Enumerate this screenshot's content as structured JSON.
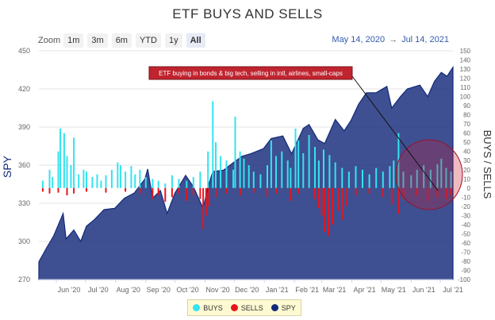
{
  "title": "ETF BUYS AND SELLS",
  "zoom": {
    "label": "Zoom",
    "buttons": [
      "1m",
      "3m",
      "6m",
      "YTD",
      "1y",
      "All"
    ],
    "active": "All"
  },
  "date_range": {
    "from": "May 14, 2020",
    "separator": "→",
    "to": "Jul 14, 2021"
  },
  "legend": {
    "buys": "BUYS",
    "sells": "SELLS",
    "spy": "SPY",
    "buys_color": "#33e3ef",
    "sells_color": "#e8141c",
    "spy_color": "#132a7a"
  },
  "chart_data": {
    "type": "area",
    "title": "ETF BUYS AND SELLS",
    "left_axis": {
      "label": "SPY",
      "range": [
        270,
        450
      ],
      "ticks": [
        270,
        300,
        330,
        360,
        390,
        420,
        450
      ]
    },
    "right_axis": {
      "label": "BUYS / SELLS",
      "range": [
        -100,
        150
      ],
      "ticks": [
        -100,
        -90,
        -80,
        -70,
        -60,
        -50,
        -40,
        -30,
        -20,
        -10,
        0,
        10,
        20,
        30,
        40,
        50,
        60,
        70,
        80,
        90,
        100,
        110,
        120,
        130,
        140,
        150
      ]
    },
    "x_ticks": [
      "Jun '20",
      "Jul '20",
      "Aug '20",
      "Sep '20",
      "Oct '20",
      "Nov '20",
      "Dec '20",
      "Jan '21",
      "Feb '21",
      "Mar '21",
      "Apr '21",
      "May '21",
      "Jun '21",
      "Jul '21"
    ],
    "x_range": [
      "2020-05-14",
      "2021-07-14"
    ],
    "annotation": "ETF buying in bonds & big tech, selling in intl, airlines, small-caps",
    "series": [
      {
        "name": "SPY",
        "color": "#132a7a",
        "points": [
          [
            "2020-05-14",
            284
          ],
          [
            "2020-05-22",
            295
          ],
          [
            "2020-05-29",
            304
          ],
          [
            "2020-06-08",
            322
          ],
          [
            "2020-06-11",
            302
          ],
          [
            "2020-06-19",
            309
          ],
          [
            "2020-06-26",
            300
          ],
          [
            "2020-07-02",
            312
          ],
          [
            "2020-07-10",
            317
          ],
          [
            "2020-07-20",
            325
          ],
          [
            "2020-07-31",
            326
          ],
          [
            "2020-08-10",
            334
          ],
          [
            "2020-08-20",
            338
          ],
          [
            "2020-08-31",
            349
          ],
          [
            "2020-09-03",
            357
          ],
          [
            "2020-09-08",
            334
          ],
          [
            "2020-09-16",
            340
          ],
          [
            "2020-09-23",
            322
          ],
          [
            "2020-10-01",
            338
          ],
          [
            "2020-10-12",
            352
          ],
          [
            "2020-10-20",
            343
          ],
          [
            "2020-10-30",
            326
          ],
          [
            "2020-11-04",
            343
          ],
          [
            "2020-11-09",
            355
          ],
          [
            "2020-11-20",
            356
          ],
          [
            "2020-11-30",
            362
          ],
          [
            "2020-12-09",
            367
          ],
          [
            "2020-12-18",
            369
          ],
          [
            "2020-12-31",
            373
          ],
          [
            "2021-01-08",
            381
          ],
          [
            "2021-01-20",
            383
          ],
          [
            "2021-01-29",
            369
          ],
          [
            "2021-02-10",
            389
          ],
          [
            "2021-02-16",
            392
          ],
          [
            "2021-02-25",
            380
          ],
          [
            "2021-03-04",
            377
          ],
          [
            "2021-03-15",
            396
          ],
          [
            "2021-03-24",
            387
          ],
          [
            "2021-03-31",
            395
          ],
          [
            "2021-04-08",
            408
          ],
          [
            "2021-04-16",
            417
          ],
          [
            "2021-04-26",
            417
          ],
          [
            "2021-05-07",
            422
          ],
          [
            "2021-05-12",
            405
          ],
          [
            "2021-05-21",
            414
          ],
          [
            "2021-05-28",
            420
          ],
          [
            "2021-06-10",
            423
          ],
          [
            "2021-06-18",
            414
          ],
          [
            "2021-06-25",
            426
          ],
          [
            "2021-07-02",
            433
          ],
          [
            "2021-07-08",
            430
          ],
          [
            "2021-07-14",
            437
          ]
        ]
      },
      {
        "name": "BUYS",
        "color": "#33e3ef",
        "points": [
          [
            "2020-05-18",
            8
          ],
          [
            "2020-05-25",
            20
          ],
          [
            "2020-05-28",
            12
          ],
          [
            "2020-06-03",
            40
          ],
          [
            "2020-06-05",
            65
          ],
          [
            "2020-06-09",
            60
          ],
          [
            "2020-06-12",
            35
          ],
          [
            "2020-06-16",
            25
          ],
          [
            "2020-06-19",
            55
          ],
          [
            "2020-06-24",
            15
          ],
          [
            "2020-06-29",
            20
          ],
          [
            "2020-07-02",
            18
          ],
          [
            "2020-07-08",
            12
          ],
          [
            "2020-07-13",
            15
          ],
          [
            "2020-07-17",
            8
          ],
          [
            "2020-07-22",
            14
          ],
          [
            "2020-07-28",
            20
          ],
          [
            "2020-08-03",
            28
          ],
          [
            "2020-08-06",
            25
          ],
          [
            "2020-08-11",
            18
          ],
          [
            "2020-08-17",
            24
          ],
          [
            "2020-08-21",
            15
          ],
          [
            "2020-08-26",
            20
          ],
          [
            "2020-09-01",
            12
          ],
          [
            "2020-09-08",
            10
          ],
          [
            "2020-09-14",
            8
          ],
          [
            "2020-09-21",
            5
          ],
          [
            "2020-09-28",
            14
          ],
          [
            "2020-10-05",
            10
          ],
          [
            "2020-10-13",
            8
          ],
          [
            "2020-10-20",
            12
          ],
          [
            "2020-10-27",
            18
          ],
          [
            "2020-11-04",
            40
          ],
          [
            "2020-11-09",
            95
          ],
          [
            "2020-11-12",
            50
          ],
          [
            "2020-11-17",
            35
          ],
          [
            "2020-11-23",
            30
          ],
          [
            "2020-11-30",
            20
          ],
          [
            "2020-12-02",
            78
          ],
          [
            "2020-12-07",
            40
          ],
          [
            "2020-12-11",
            32
          ],
          [
            "2020-12-16",
            25
          ],
          [
            "2020-12-21",
            18
          ],
          [
            "2020-12-28",
            15
          ],
          [
            "2021-01-04",
            25
          ],
          [
            "2021-01-08",
            52
          ],
          [
            "2021-01-13",
            35
          ],
          [
            "2021-01-19",
            40
          ],
          [
            "2021-01-25",
            30
          ],
          [
            "2021-01-28",
            22
          ],
          [
            "2021-02-02",
            65
          ],
          [
            "2021-02-05",
            52
          ],
          [
            "2021-02-10",
            38
          ],
          [
            "2021-02-16",
            58
          ],
          [
            "2021-02-22",
            45
          ],
          [
            "2021-02-26",
            30
          ],
          [
            "2021-03-03",
            42
          ],
          [
            "2021-03-09",
            36
          ],
          [
            "2021-03-15",
            28
          ],
          [
            "2021-03-22",
            22
          ],
          [
            "2021-03-29",
            18
          ],
          [
            "2021-04-05",
            24
          ],
          [
            "2021-04-12",
            20
          ],
          [
            "2021-04-19",
            15
          ],
          [
            "2021-04-26",
            22
          ],
          [
            "2021-05-03",
            18
          ],
          [
            "2021-05-10",
            24
          ],
          [
            "2021-05-14",
            30
          ],
          [
            "2021-05-19",
            60
          ],
          [
            "2021-05-24",
            18
          ],
          [
            "2021-06-01",
            14
          ],
          [
            "2021-06-07",
            20
          ],
          [
            "2021-06-14",
            25
          ],
          [
            "2021-06-21",
            20
          ],
          [
            "2021-06-28",
            26
          ],
          [
            "2021-07-02",
            32
          ],
          [
            "2021-07-07",
            22
          ],
          [
            "2021-07-12",
            18
          ]
        ]
      },
      {
        "name": "SELLS",
        "color": "#e8141c",
        "points": [
          [
            "2020-05-18",
            -4
          ],
          [
            "2020-05-25",
            -6
          ],
          [
            "2020-06-03",
            -5
          ],
          [
            "2020-06-12",
            -8
          ],
          [
            "2020-06-19",
            -6
          ],
          [
            "2020-07-02",
            -4
          ],
          [
            "2020-07-22",
            -5
          ],
          [
            "2020-08-11",
            -4
          ],
          [
            "2020-08-26",
            -6
          ],
          [
            "2020-09-08",
            -12
          ],
          [
            "2020-09-14",
            -8
          ],
          [
            "2020-09-21",
            -15
          ],
          [
            "2020-09-28",
            -10
          ],
          [
            "2020-10-05",
            -6
          ],
          [
            "2020-10-13",
            -14
          ],
          [
            "2020-10-20",
            -8
          ],
          [
            "2020-10-27",
            -12
          ],
          [
            "2020-10-30",
            -45
          ],
          [
            "2020-11-02",
            -30
          ],
          [
            "2020-11-05",
            -20
          ],
          [
            "2020-11-12",
            -10
          ],
          [
            "2020-11-23",
            -6
          ],
          [
            "2020-12-07",
            -8
          ],
          [
            "2020-12-21",
            -5
          ],
          [
            "2021-01-04",
            -10
          ],
          [
            "2021-01-13",
            -6
          ],
          [
            "2021-01-28",
            -14
          ],
          [
            "2021-02-05",
            -6
          ],
          [
            "2021-02-22",
            -12
          ],
          [
            "2021-02-26",
            -22
          ],
          [
            "2021-03-01",
            -30
          ],
          [
            "2021-03-04",
            -48
          ],
          [
            "2021-03-08",
            -52
          ],
          [
            "2021-03-12",
            -40
          ],
          [
            "2021-03-18",
            -25
          ],
          [
            "2021-03-22",
            -35
          ],
          [
            "2021-03-26",
            -20
          ],
          [
            "2021-04-05",
            -8
          ],
          [
            "2021-04-19",
            -6
          ],
          [
            "2021-05-03",
            -10
          ],
          [
            "2021-05-12",
            -18
          ],
          [
            "2021-05-19",
            -28
          ],
          [
            "2021-05-24",
            -12
          ],
          [
            "2021-06-07",
            -8
          ],
          [
            "2021-06-18",
            -14
          ],
          [
            "2021-06-28",
            -10
          ],
          [
            "2021-07-07",
            -12
          ],
          [
            "2021-07-12",
            -8
          ]
        ]
      }
    ]
  }
}
